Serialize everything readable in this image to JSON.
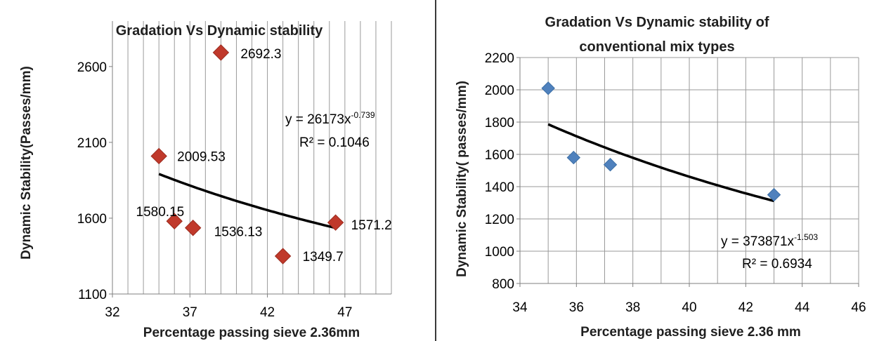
{
  "chart_data": [
    {
      "type": "scatter",
      "title": "Gradation Vs Dynamic stability",
      "xlabel": "Percentage passing sieve 2.36mm",
      "ylabel": "Dynamic Stability(Passes/mm)",
      "xlim": [
        32,
        50
      ],
      "ylim": [
        1100,
        2900
      ],
      "xticks": [
        32,
        37,
        42,
        47
      ],
      "yticks": [
        1100,
        1600,
        2100,
        2600
      ],
      "x_minor_grid_step": 1,
      "y_grid": false,
      "marker_color": "#c0392b",
      "marker": "diamond",
      "points": [
        {
          "x": 35.0,
          "y": 2009.53,
          "label": "2009.53"
        },
        {
          "x": 36.0,
          "y": 1580.15,
          "label": "1580.15"
        },
        {
          "x": 37.2,
          "y": 1536.13,
          "label": "1536.13"
        },
        {
          "x": 39.0,
          "y": 2692.3,
          "label": "2692.3"
        },
        {
          "x": 43.0,
          "y": 1349.7,
          "label": "1349.7"
        },
        {
          "x": 46.4,
          "y": 1571.2,
          "label": "1571.2"
        }
      ],
      "trendline": {
        "type": "power",
        "a": 26173,
        "b": -0.739,
        "x_range": [
          35.0,
          46.4
        ],
        "equation_base": "y = 26173x",
        "equation_exp": "-0.739",
        "r_squared_text": "R² = 0.1046"
      }
    },
    {
      "type": "scatter",
      "title_lines": [
        "Gradation Vs Dynamic stability of",
        "conventional mix types"
      ],
      "xlabel": "Percentage passing sieve 2.36 mm",
      "ylabel": "Dynamic Stability( passes/mm)",
      "xlim": [
        34,
        46
      ],
      "ylim": [
        800,
        2200
      ],
      "xticks": [
        34,
        36,
        38,
        40,
        42,
        44,
        46
      ],
      "yticks": [
        800,
        1000,
        1200,
        1400,
        1600,
        1800,
        2000,
        2200
      ],
      "x_minor_grid_step": 1,
      "y_grid": true,
      "marker_color": "#4f81bd",
      "marker": "diamond",
      "points": [
        {
          "x": 35.0,
          "y": 2009.53
        },
        {
          "x": 35.9,
          "y": 1580.15
        },
        {
          "x": 37.2,
          "y": 1536.13
        },
        {
          "x": 43.0,
          "y": 1349.7
        }
      ],
      "trendline": {
        "type": "power",
        "a": 373871,
        "b": -1.503,
        "x_range": [
          35.0,
          43.0
        ],
        "equation_base": "y = 373871x",
        "equation_exp": "-1.503",
        "r_squared_text": "R² = 0.6934"
      }
    }
  ]
}
